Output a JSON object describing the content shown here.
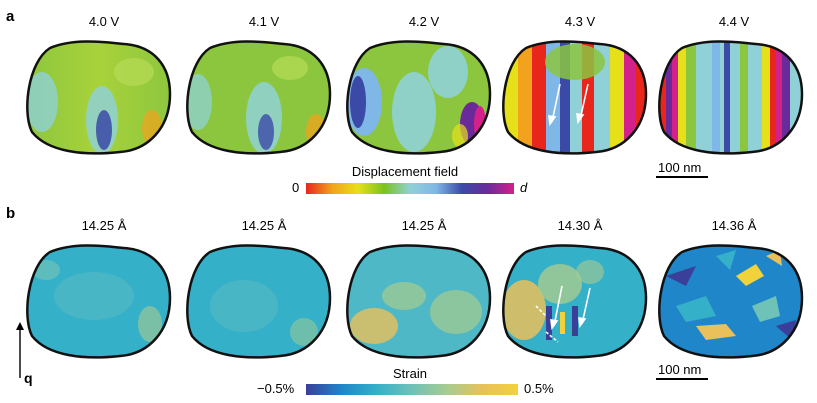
{
  "panel_a": {
    "letter": "a",
    "voltages": [
      "4.0 V",
      "4.1 V",
      "4.2 V",
      "4.3 V",
      "4.4 V"
    ],
    "colorbar": {
      "title": "Displacement field",
      "min": "0",
      "max": "d"
    },
    "scale_label": "100 nm"
  },
  "panel_b": {
    "letter": "b",
    "lattice": [
      "14.25 Å",
      "14.25 Å",
      "14.25 Å",
      "14.30 Å",
      "14.36 Å"
    ],
    "colorbar": {
      "title": "Strain",
      "min": "−0.5%",
      "max": "0.5%"
    },
    "scale_label": "100 nm",
    "vector_label": "q"
  },
  "colors": {
    "displacement_ramp": [
      "#e8261c",
      "#f2a21c",
      "#e6e01a",
      "#7cc21e",
      "#8fd1d6",
      "#7fb7e6",
      "#3b4aa7",
      "#6a2a9a",
      "#d4208a"
    ],
    "strain_ramp": [
      "#3a3f9a",
      "#1f86c9",
      "#35b0c9",
      "#6fc2b7",
      "#a7cc8f",
      "#e9c05a",
      "#f2d23b"
    ],
    "outline": "#111111"
  }
}
